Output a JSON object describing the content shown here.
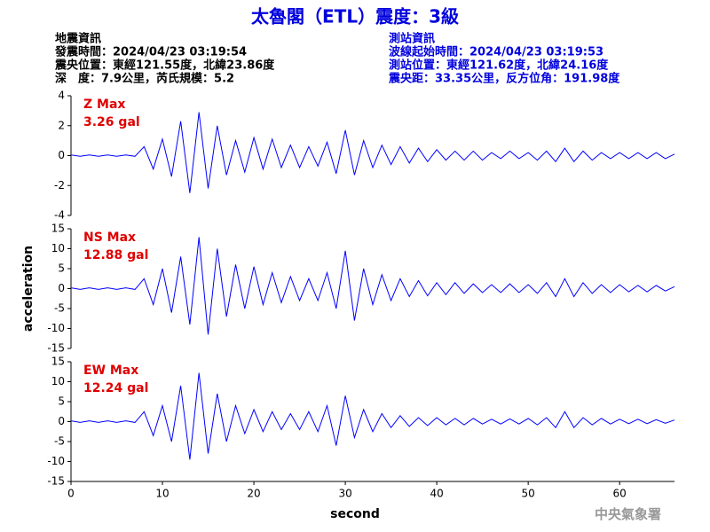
{
  "header": {
    "title": "太魯閣（ETL）震度：3級",
    "left": [
      "地震資訊",
      "發震時間：2024/04/23 03:19:54",
      "震央位置：東經121.55度，北緯23.86度",
      "深　度：7.9公里，芮氏規模：5.2"
    ],
    "right": [
      "測站資訊",
      "波線起始時間：2024/04/23 03:19:53",
      "測站位置：東經121.62度，北緯24.16度",
      "震央距：33.35公里，反方位角：191.98度"
    ],
    "footer": "中央氣象署"
  },
  "chart_data": [
    {
      "type": "line",
      "annotations": [
        "Z Max",
        "3.26 gal"
      ],
      "color": "#0000ff",
      "xlim": [
        0,
        66
      ],
      "ylim": [
        -4,
        4
      ],
      "yticks": [
        -4,
        -2,
        0,
        2,
        4
      ],
      "x": [
        0,
        1,
        2,
        3,
        4,
        5,
        6,
        7,
        8,
        9,
        10,
        11,
        12,
        13,
        14,
        15,
        16,
        17,
        18,
        19,
        20,
        21,
        22,
        23,
        24,
        25,
        26,
        27,
        28,
        29,
        30,
        31,
        32,
        33,
        34,
        35,
        36,
        37,
        38,
        39,
        40,
        41,
        42,
        43,
        44,
        45,
        46,
        47,
        48,
        49,
        50,
        51,
        52,
        53,
        54,
        55,
        56,
        57,
        58,
        59,
        60,
        61,
        62,
        63,
        64,
        65,
        66
      ],
      "values": [
        0.05,
        -0.05,
        0.05,
        -0.05,
        0.05,
        -0.05,
        0.05,
        -0.05,
        0.6,
        -0.9,
        1.1,
        -1.4,
        2.3,
        -2.5,
        2.9,
        -2.2,
        2.0,
        -1.3,
        1.0,
        -1.1,
        1.2,
        -0.9,
        1.1,
        -0.8,
        0.7,
        -0.8,
        0.6,
        -0.7,
        0.9,
        -1.2,
        1.7,
        -1.3,
        1.0,
        -0.8,
        0.7,
        -0.6,
        0.6,
        -0.5,
        0.5,
        -0.4,
        0.4,
        -0.3,
        0.3,
        -0.3,
        0.3,
        -0.3,
        0.2,
        -0.2,
        0.3,
        -0.2,
        0.2,
        -0.3,
        0.3,
        -0.4,
        0.5,
        -0.4,
        0.3,
        -0.3,
        0.2,
        -0.2,
        0.2,
        -0.2,
        0.2,
        -0.2,
        0.2,
        -0.2,
        0.1
      ]
    },
    {
      "type": "line",
      "annotations": [
        "NS Max",
        "12.88 gal"
      ],
      "ylabel": "acceleration",
      "color": "#0000ff",
      "xlim": [
        0,
        66
      ],
      "ylim": [
        -15,
        15
      ],
      "yticks": [
        -15,
        -10,
        -5,
        0,
        5,
        10,
        15
      ],
      "x": [
        0,
        1,
        2,
        3,
        4,
        5,
        6,
        7,
        8,
        9,
        10,
        11,
        12,
        13,
        14,
        15,
        16,
        17,
        18,
        19,
        20,
        21,
        22,
        23,
        24,
        25,
        26,
        27,
        28,
        29,
        30,
        31,
        32,
        33,
        34,
        35,
        36,
        37,
        38,
        39,
        40,
        41,
        42,
        43,
        44,
        45,
        46,
        47,
        48,
        49,
        50,
        51,
        52,
        53,
        54,
        55,
        56,
        57,
        58,
        59,
        60,
        61,
        62,
        63,
        64,
        65,
        66
      ],
      "values": [
        0.2,
        -0.2,
        0.2,
        -0.2,
        0.2,
        -0.2,
        0.2,
        -0.2,
        2.5,
        -4,
        5,
        -6,
        8,
        -9,
        12.9,
        -11.5,
        10,
        -7,
        6,
        -5,
        5.5,
        -4,
        4,
        -3.5,
        3,
        -3,
        2.5,
        -3,
        4,
        -5,
        9.5,
        -8,
        5,
        -4,
        3.5,
        -3,
        2.5,
        -2,
        2,
        -1.8,
        1.5,
        -1.5,
        1.5,
        -1.2,
        1.2,
        -1,
        1,
        -1,
        1.2,
        -1,
        1,
        -1.2,
        1.5,
        -2,
        2.5,
        -2,
        1.5,
        -1.2,
        1,
        -1,
        1,
        -0.8,
        0.8,
        -0.8,
        0.8,
        -0.6,
        0.5
      ]
    },
    {
      "type": "line",
      "annotations": [
        "EW Max",
        "12.24 gal"
      ],
      "xlabel": "second",
      "color": "#0000ff",
      "xlim": [
        0,
        66
      ],
      "xticks": [
        0,
        10,
        20,
        30,
        40,
        50,
        60
      ],
      "ylim": [
        -15,
        15
      ],
      "yticks": [
        -15,
        -10,
        -5,
        0,
        5,
        10,
        15
      ],
      "x": [
        0,
        1,
        2,
        3,
        4,
        5,
        6,
        7,
        8,
        9,
        10,
        11,
        12,
        13,
        14,
        15,
        16,
        17,
        18,
        19,
        20,
        21,
        22,
        23,
        24,
        25,
        26,
        27,
        28,
        29,
        30,
        31,
        32,
        33,
        34,
        35,
        36,
        37,
        38,
        39,
        40,
        41,
        42,
        43,
        44,
        45,
        46,
        47,
        48,
        49,
        50,
        51,
        52,
        53,
        54,
        55,
        56,
        57,
        58,
        59,
        60,
        61,
        62,
        63,
        64,
        65,
        66
      ],
      "values": [
        0.2,
        -0.2,
        0.2,
        -0.2,
        0.2,
        -0.2,
        0.2,
        -0.2,
        2.5,
        -3.5,
        4,
        -5,
        9,
        -9.5,
        12.2,
        -8,
        7,
        -5,
        4,
        -3,
        3,
        -2.5,
        2.5,
        -2,
        2,
        -2,
        2.5,
        -2.5,
        4,
        -6,
        6.5,
        -4,
        3,
        -2.5,
        2,
        -1.5,
        1.5,
        -1.2,
        1,
        -1,
        1,
        -0.8,
        0.8,
        -0.8,
        0.8,
        -0.6,
        0.6,
        -0.6,
        0.7,
        -0.6,
        0.8,
        -0.8,
        1,
        -1.5,
        2.5,
        -1.5,
        1,
        -0.8,
        0.8,
        -0.6,
        0.6,
        -0.5,
        0.6,
        -0.5,
        0.5,
        -0.4,
        0.4
      ]
    }
  ]
}
